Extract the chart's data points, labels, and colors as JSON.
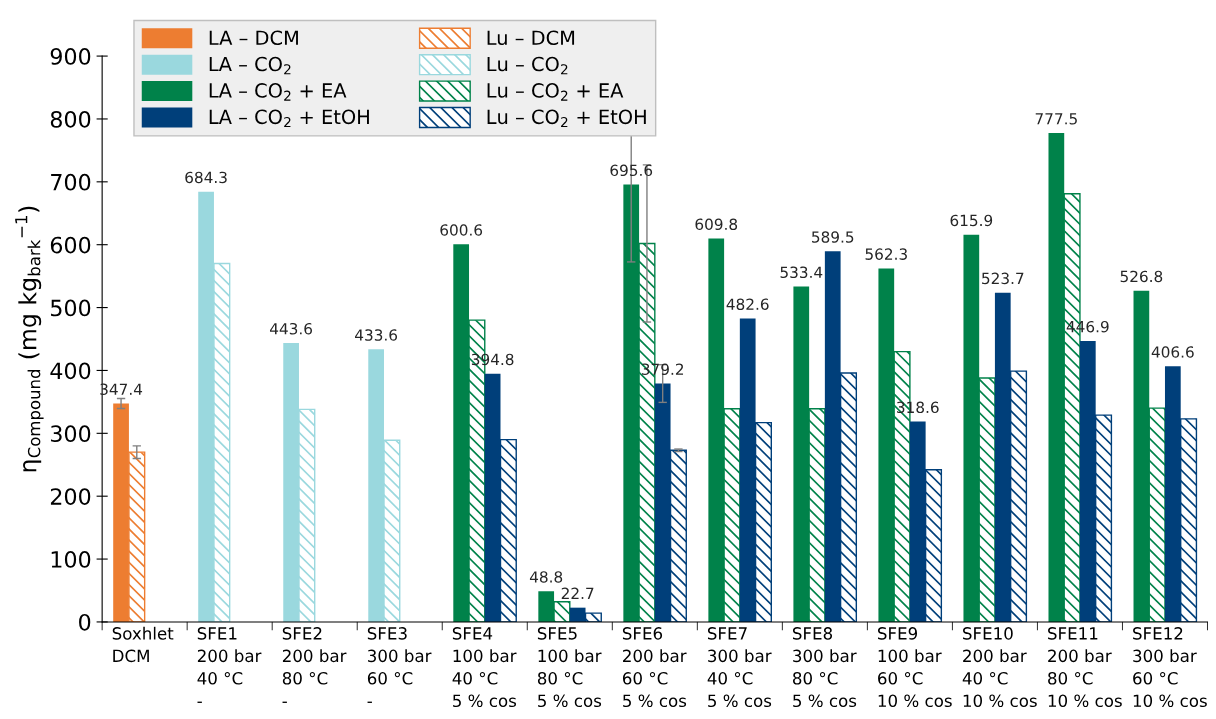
{
  "chart_data": {
    "type": "bar",
    "ylabel": "η$_{Compound}$ (mg kg$_{bark}$$^{−1}$)",
    "categories": [
      "Soxhlet\nDCM",
      "SFE1\n200 bar\n40 °C\n-",
      "SFE2\n200 bar\n80 °C\n-",
      "SFE3\n300 bar\n60 °C\n-",
      "SFE4\n100 bar\n40 °C\n5 % cos",
      "SFE5\n100 bar\n80 °C\n5 % cos",
      "SFE6\n200 bar\n60 °C\n5 % cos",
      "SFE7\n300 bar\n40 °C\n5 % cos",
      "SFE8\n300 bar\n80 °C\n5 % cos",
      "SFE9\n100 bar\n60 °C\n10 % cos",
      "SFE10\n200 bar\n40 °C\n10 % cos",
      "SFE11\n200 bar\n80 °C\n10 % cos",
      "SFE12\n300 bar\n60 °C\n10 % cos"
    ],
    "series": [
      {
        "name": "LA – DCM",
        "color": "#ed7d31",
        "values": [
          347.4,
          null,
          null,
          null,
          null,
          null,
          null,
          null,
          null,
          null,
          null,
          null,
          null
        ],
        "errors": [
          8,
          null,
          null,
          null,
          null,
          null,
          null,
          null,
          null,
          null,
          null,
          null,
          null
        ],
        "value_labels": [
          "347.4",
          null,
          null,
          null,
          null,
          null,
          null,
          null,
          null,
          null,
          null,
          null,
          null
        ]
      },
      {
        "name": "Lu – DCM",
        "color": "#ed7d31",
        "values": [
          270,
          null,
          null,
          null,
          null,
          null,
          null,
          null,
          null,
          null,
          null,
          null,
          null
        ],
        "errors": [
          10,
          null,
          null,
          null,
          null,
          null,
          null,
          null,
          null,
          null,
          null,
          null,
          null
        ]
      },
      {
        "name": "LA – CO$_{2}$",
        "color": "#9ad8de",
        "values": [
          null,
          684.3,
          443.6,
          433.6,
          null,
          null,
          null,
          null,
          null,
          null,
          null,
          null,
          null
        ],
        "value_labels": [
          null,
          "684.3",
          "443.6",
          "433.6",
          null,
          null,
          null,
          null,
          null,
          null,
          null,
          null,
          null
        ]
      },
      {
        "name": "Lu – CO$_{2}$",
        "color": "#9ad8de",
        "values": [
          null,
          570,
          338,
          289,
          null,
          null,
          null,
          null,
          null,
          null,
          null,
          null,
          null
        ]
      },
      {
        "name": "LA – CO$_{2}$ + EA",
        "color": "#00824a",
        "values": [
          null,
          null,
          null,
          null,
          600.6,
          48.8,
          695.6,
          609.8,
          533.4,
          562.3,
          615.9,
          777.5,
          526.8
        ],
        "errors": [
          null,
          null,
          null,
          null,
          null,
          null,
          123,
          null,
          null,
          null,
          null,
          null,
          null
        ],
        "value_labels": [
          null,
          null,
          null,
          null,
          "600.6",
          "48.8",
          "695.6",
          "609.8",
          "533.4",
          "562.3",
          "615.9",
          "777.5",
          "526.8"
        ]
      },
      {
        "name": "Lu – CO$_{2}$ + EA",
        "color": "#00824a",
        "values": [
          null,
          null,
          null,
          null,
          480,
          32,
          602,
          339,
          339,
          430,
          388,
          681,
          340
        ],
        "errors": [
          null,
          null,
          null,
          null,
          null,
          null,
          125,
          null,
          null,
          null,
          null,
          null,
          null
        ]
      },
      {
        "name": "LA – CO$_{2}$ + EtOH",
        "color": "#003f7a",
        "values": [
          null,
          null,
          null,
          null,
          394.8,
          22.7,
          379.2,
          482.6,
          589.5,
          318.6,
          523.7,
          446.9,
          406.6
        ],
        "errors": [
          null,
          null,
          null,
          null,
          null,
          null,
          30,
          null,
          null,
          null,
          null,
          null,
          null
        ],
        "value_labels": [
          null,
          null,
          null,
          null,
          "394.8",
          "22.7",
          "379.2",
          "482.6",
          "589.5",
          "318.6",
          "523.7",
          "446.9",
          "406.6"
        ]
      },
      {
        "name": "Lu – CO$_{2}$ + EtOH",
        "color": "#003f7a",
        "values": [
          null,
          null,
          null,
          null,
          290,
          14,
          273,
          317,
          396,
          242,
          399,
          329,
          323
        ],
        "errors": [
          null,
          null,
          null,
          null,
          null,
          null,
          2,
          null,
          null,
          null,
          null,
          null,
          null
        ]
      }
    ],
    "ylim": [
      0,
      900
    ],
    "yticks": [
      0,
      100,
      200,
      300,
      400,
      500,
      600,
      700,
      800,
      900
    ],
    "grid": false,
    "legend": "top left"
  }
}
